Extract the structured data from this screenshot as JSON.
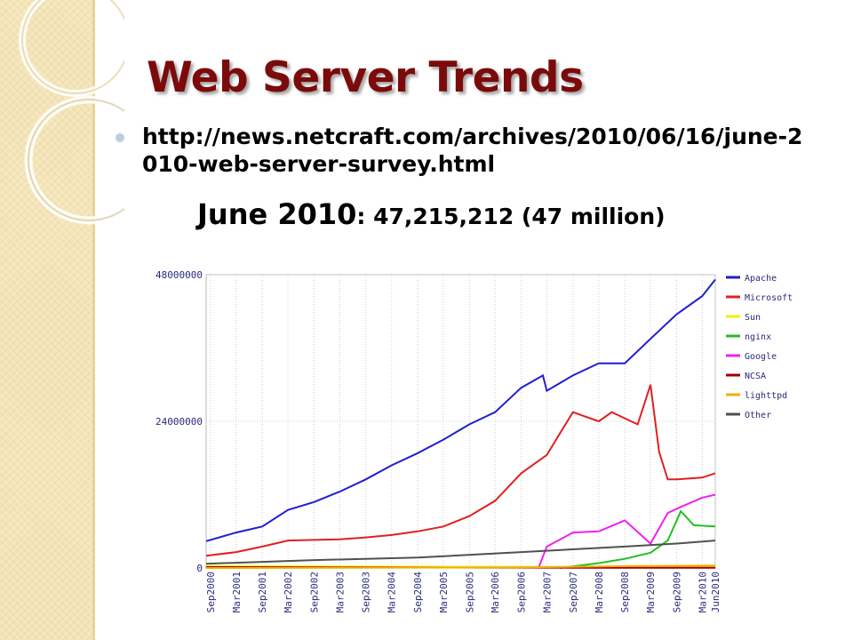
{
  "slide": {
    "title": "Web Server Trends",
    "bullet": "http://news.netcraft.com/archives/2010/06/16/june-2010-web-server-survey.html",
    "headline_date": "June 2010",
    "headline_value": ": 47,215,212  (47 million)"
  },
  "chart_data": {
    "type": "line",
    "title": "",
    "xlabel": "",
    "ylabel": "",
    "ylim": [
      0,
      48000000
    ],
    "yticks": [
      "48000000",
      "24000000",
      "0"
    ],
    "x_range": [
      "2000-08",
      "2010-06"
    ],
    "x_ticks": [
      "Sep2000",
      "Mar2001",
      "Sep2001",
      "Mar2002",
      "Sep2002",
      "Mar2003",
      "Sep2003",
      "Mar2004",
      "Sep2004",
      "Mar2005",
      "Sep2005",
      "Mar2006",
      "Sep2006",
      "Mar2007",
      "Sep2007",
      "Mar2008",
      "Sep2008",
      "Mar2009",
      "Sep2009",
      "Mar2010",
      "Jun2010"
    ],
    "grid": true,
    "legend_position": "right",
    "series": [
      {
        "name": "Apache",
        "color": "#1f1fd0",
        "points": [
          [
            "2000-08",
            4400000
          ],
          [
            "2001-03",
            5800000
          ],
          [
            "2001-09",
            6800000
          ],
          [
            "2002-03",
            9500000
          ],
          [
            "2002-09",
            10800000
          ],
          [
            "2003-03",
            12500000
          ],
          [
            "2003-09",
            14500000
          ],
          [
            "2004-03",
            16800000
          ],
          [
            "2004-09",
            18800000
          ],
          [
            "2005-03",
            21000000
          ],
          [
            "2005-09",
            23500000
          ],
          [
            "2006-03",
            25500000
          ],
          [
            "2006-09",
            29500000
          ],
          [
            "2007-02",
            31500000
          ],
          [
            "2007-03",
            29000000
          ],
          [
            "2007-09",
            31500000
          ],
          [
            "2008-03",
            33500000
          ],
          [
            "2008-09",
            33500000
          ],
          [
            "2009-03",
            37500000
          ],
          [
            "2009-09",
            41500000
          ],
          [
            "2010-03",
            44500000
          ],
          [
            "2010-06",
            47200000
          ]
        ]
      },
      {
        "name": "Microsoft",
        "color": "#e02020",
        "points": [
          [
            "2000-08",
            2000000
          ],
          [
            "2001-03",
            2600000
          ],
          [
            "2001-09",
            3500000
          ],
          [
            "2002-03",
            4500000
          ],
          [
            "2002-09",
            4600000
          ],
          [
            "2003-03",
            4700000
          ],
          [
            "2003-09",
            5000000
          ],
          [
            "2004-03",
            5400000
          ],
          [
            "2004-09",
            6000000
          ],
          [
            "2005-03",
            6800000
          ],
          [
            "2005-09",
            8500000
          ],
          [
            "2006-03",
            11000000
          ],
          [
            "2006-09",
            15500000
          ],
          [
            "2007-03",
            18500000
          ],
          [
            "2007-09",
            25500000
          ],
          [
            "2008-03",
            24000000
          ],
          [
            "2008-06",
            25500000
          ],
          [
            "2008-09",
            24500000
          ],
          [
            "2008-12",
            23500000
          ],
          [
            "2009-03",
            30000000
          ],
          [
            "2009-05",
            19000000
          ],
          [
            "2009-07",
            14500000
          ],
          [
            "2009-09",
            14500000
          ],
          [
            "2010-03",
            14800000
          ],
          [
            "2010-06",
            15500000
          ]
        ]
      },
      {
        "name": "Sun",
        "color": "#f0f000",
        "points": [
          [
            "2000-08",
            300000
          ],
          [
            "2002-09",
            250000
          ],
          [
            "2005-09",
            200000
          ],
          [
            "2008-09",
            150000
          ],
          [
            "2010-06",
            150000
          ]
        ]
      },
      {
        "name": "nginx",
        "color": "#20c020",
        "points": [
          [
            "2007-06",
            0
          ],
          [
            "2008-03",
            800000
          ],
          [
            "2008-09",
            1500000
          ],
          [
            "2009-03",
            2500000
          ],
          [
            "2009-07",
            4500000
          ],
          [
            "2009-10",
            9300000
          ],
          [
            "2010-01",
            7000000
          ],
          [
            "2010-06",
            6800000
          ]
        ]
      },
      {
        "name": "Google",
        "color": "#f020f0",
        "points": [
          [
            "2007-01",
            0
          ],
          [
            "2007-03",
            3500000
          ],
          [
            "2007-09",
            5800000
          ],
          [
            "2008-03",
            6000000
          ],
          [
            "2008-09",
            7800000
          ],
          [
            "2009-03",
            4000000
          ],
          [
            "2009-07",
            9000000
          ],
          [
            "2009-10",
            10000000
          ],
          [
            "2010-03",
            11500000
          ],
          [
            "2010-06",
            12000000
          ]
        ]
      },
      {
        "name": "NCSA",
        "color": "#a00000",
        "points": [
          [
            "2000-08",
            150000
          ],
          [
            "2003-09",
            100000
          ],
          [
            "2007-09",
            50000
          ],
          [
            "2010-06",
            30000
          ]
        ]
      },
      {
        "name": "lighttpd",
        "color": "#f0b000",
        "points": [
          [
            "2000-08",
            0
          ],
          [
            "2006-09",
            100000
          ],
          [
            "2008-09",
            300000
          ],
          [
            "2010-06",
            400000
          ]
        ]
      },
      {
        "name": "Other",
        "color": "#505050",
        "points": [
          [
            "2000-08",
            700000
          ],
          [
            "2002-09",
            1300000
          ],
          [
            "2004-09",
            1700000
          ],
          [
            "2006-09",
            2600000
          ],
          [
            "2008-09",
            3500000
          ],
          [
            "2009-09",
            4000000
          ],
          [
            "2010-06",
            4500000
          ]
        ]
      }
    ]
  }
}
